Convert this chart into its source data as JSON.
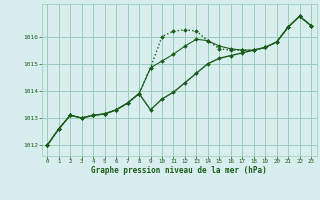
{
  "title": "Graphe pression niveau de la mer (hPa)",
  "background_color": "#d8eeee",
  "grid_color": "#99ccbb",
  "line_color": "#1a5c1a",
  "ylim": [
    1011.6,
    1017.2
  ],
  "xlim": [
    -0.5,
    23.5
  ],
  "yticks": [
    1012,
    1013,
    1014,
    1015,
    1016
  ],
  "xticks": [
    0,
    1,
    2,
    3,
    4,
    5,
    6,
    7,
    8,
    9,
    10,
    11,
    12,
    13,
    14,
    15,
    16,
    17,
    18,
    19,
    20,
    21,
    22,
    23
  ],
  "series": [
    {
      "y": [
        1012.0,
        1012.6,
        1013.1,
        1013.0,
        1013.1,
        1013.15,
        1013.3,
        1013.55,
        1013.9,
        1014.85,
        1016.0,
        1016.2,
        1016.25,
        1016.2,
        1015.85,
        1015.55,
        1015.5,
        1015.5,
        1015.5,
        1015.6,
        1015.8,
        1016.35,
        1016.75,
        1016.4
      ],
      "linestyle": ":",
      "linewidth": 1.0,
      "marker": "D",
      "markersize": 2.0,
      "zorder": 3
    },
    {
      "y": [
        1012.0,
        1012.6,
        1013.1,
        1013.0,
        1013.1,
        1013.15,
        1013.3,
        1013.55,
        1013.9,
        1013.3,
        1013.7,
        1013.95,
        1014.3,
        1014.65,
        1015.0,
        1015.2,
        1015.3,
        1015.4,
        1015.5,
        1015.6,
        1015.8,
        1016.35,
        1016.75,
        1016.4
      ],
      "linestyle": "-",
      "linewidth": 1.0,
      "marker": "D",
      "markersize": 2.0,
      "zorder": 2
    },
    {
      "y": [
        1012.0,
        1012.6,
        1013.1,
        1013.0,
        1013.1,
        1013.15,
        1013.3,
        1013.55,
        1013.9,
        1014.85,
        1015.1,
        1015.35,
        1015.65,
        1015.9,
        1015.85,
        1015.65,
        1015.55,
        1015.5,
        1015.5,
        1015.6,
        1015.8,
        1016.35,
        1016.75,
        1016.4
      ],
      "linestyle": "-",
      "linewidth": 0.8,
      "marker": "D",
      "markersize": 2.0,
      "zorder": 2
    }
  ]
}
